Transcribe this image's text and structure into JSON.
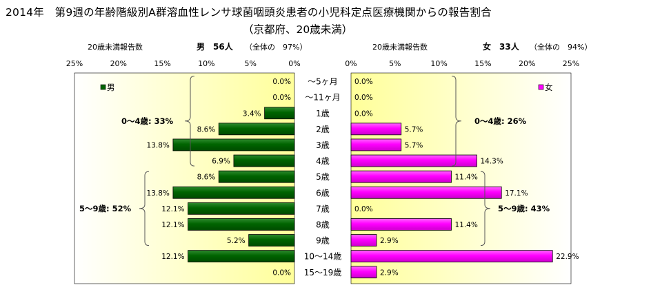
{
  "title": {
    "line1": "2014年　第9週の年齢階級別A群溶血性レンサ球菌咽頭炎患者の小児科定点医療機関からの報告割合",
    "line2": "（京都府、20歳未満）"
  },
  "chart_data": {
    "type": "bar",
    "orientation": "horizontal-butterfly",
    "categories": [
      "～5ヶ月",
      "～11ヶ月",
      "1歳",
      "2歳",
      "3歳",
      "4歳",
      "5歳",
      "6歳",
      "7歳",
      "8歳",
      "9歳",
      "10～14歳",
      "15～19歳"
    ],
    "male": {
      "axis_title": "20歳未満報告数",
      "header": "男　56人",
      "header_note": "（全体の　97%）",
      "legend": "男",
      "color": "#006400",
      "xlim": [
        0,
        25
      ],
      "ticks": [
        "25%",
        "20%",
        "15%",
        "10%",
        "5%",
        "0%"
      ],
      "values": [
        0.0,
        0.0,
        3.4,
        8.6,
        13.8,
        6.9,
        8.6,
        13.8,
        12.1,
        12.1,
        5.2,
        12.1,
        0.0
      ],
      "labels": [
        "0.0%",
        "0.0%",
        "3.4%",
        "8.6%",
        "13.8%",
        "6.9%",
        "8.6%",
        "13.8%",
        "12.1%",
        "12.1%",
        "5.2%",
        "12.1%",
        "0.0%"
      ],
      "groups": [
        {
          "label": "0～4歳: 33%",
          "from": 0,
          "to": 5
        },
        {
          "label": "5～9歳: 52%",
          "from": 6,
          "to": 10
        }
      ]
    },
    "female": {
      "axis_title": "20歳未満報告数",
      "header": "女　33人",
      "header_note": "（全体の　94%）",
      "legend": "女",
      "color": "#ff00ff",
      "xlim": [
        0,
        25
      ],
      "ticks": [
        "0%",
        "5%",
        "10%",
        "15%",
        "20%",
        "25%"
      ],
      "values": [
        0.0,
        0.0,
        0.0,
        5.7,
        5.7,
        14.3,
        11.4,
        17.1,
        0.0,
        11.4,
        2.9,
        22.9,
        2.9
      ],
      "labels": [
        "0.0%",
        "0.0%",
        "0.0%",
        "5.7%",
        "5.7%",
        "14.3%",
        "11.4%",
        "17.1%",
        "0.0%",
        "11.4%",
        "2.9%",
        "22.9%",
        "2.9%"
      ],
      "groups": [
        {
          "label": "0～4歳: 26%",
          "from": 0,
          "to": 5
        },
        {
          "label": "5～9歳: 43%",
          "from": 6,
          "to": 10
        }
      ]
    }
  }
}
